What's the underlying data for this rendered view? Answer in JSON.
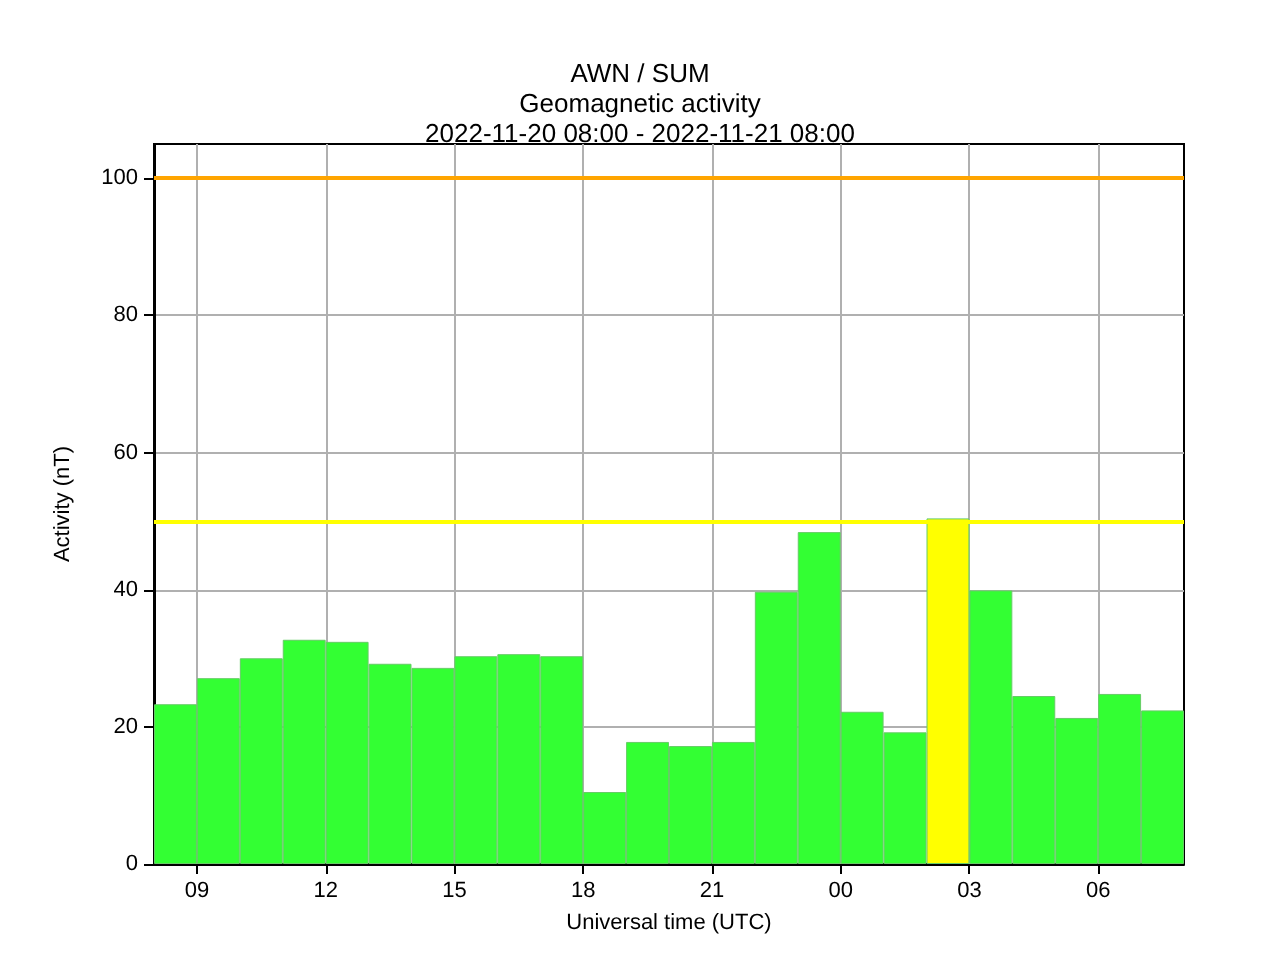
{
  "chart_data": {
    "type": "bar",
    "title": "AWN / SUM",
    "subtitle": "Geomagnetic activity\n2022-11-20 08:00 - 2022-11-21 08:00",
    "xlabel": "Universal time (UTC)",
    "ylabel": "Activity (nT)",
    "x": [
      "2022-11-20T08:30",
      "2022-11-20T09:30",
      "2022-11-20T10:30",
      "2022-11-20T11:30",
      "2022-11-20T12:30",
      "2022-11-20T13:30",
      "2022-11-20T14:30",
      "2022-11-20T15:30",
      "2022-11-20T16:30",
      "2022-11-20T17:30",
      "2022-11-20T18:30",
      "2022-11-20T19:30",
      "2022-11-20T20:30",
      "2022-11-20T21:30",
      "2022-11-20T22:30",
      "2022-11-20T23:30",
      "2022-11-21T00:30",
      "2022-11-21T01:30",
      "2022-11-21T02:30",
      "2022-11-21T03:30",
      "2022-11-21T04:30",
      "2022-11-21T05:30",
      "2022-11-21T06:30",
      "2022-11-21T07:30"
    ],
    "values": [
      23.3,
      27.1,
      30,
      32.7,
      32.4,
      29.2,
      28.6,
      30.3,
      30.6,
      30.3,
      10.5,
      17.8,
      17.2,
      17.8,
      39.7,
      48.4,
      22.2,
      19.2,
      50.4,
      39.9,
      24.5,
      21.3,
      24.8,
      22.4
    ],
    "colors": [
      "#33ff33",
      "#33ff33",
      "#33ff33",
      "#33ff33",
      "#33ff33",
      "#33ff33",
      "#33ff33",
      "#33ff33",
      "#33ff33",
      "#33ff33",
      "#33ff33",
      "#33ff33",
      "#33ff33",
      "#33ff33",
      "#33ff33",
      "#33ff33",
      "#33ff33",
      "#33ff33",
      "#ffff00",
      "#33ff33",
      "#33ff33",
      "#33ff33",
      "#33ff33",
      "#33ff33"
    ],
    "xlim": [
      "2022-11-20T08:00",
      "2022-11-21T08:00"
    ],
    "xticks": [
      {
        "value": "2022-11-20T09:00",
        "label": "09"
      },
      {
        "value": "2022-11-20T12:00",
        "label": "12"
      },
      {
        "value": "2022-11-20T15:00",
        "label": "15"
      },
      {
        "value": "2022-11-20T18:00",
        "label": "18"
      },
      {
        "value": "2022-11-20T21:00",
        "label": "21"
      },
      {
        "value": "2022-11-21T00:00",
        "label": "00"
      },
      {
        "value": "2022-11-21T03:00",
        "label": "03"
      },
      {
        "value": "2022-11-21T06:00",
        "label": "06"
      }
    ],
    "ylim": [
      0,
      105
    ],
    "yticks": [
      0,
      20,
      40,
      60,
      80,
      100
    ],
    "ref_lines": [
      {
        "axis": "y",
        "value": 100,
        "color": "#ffa500"
      },
      {
        "axis": "y",
        "value": 50,
        "color": "#ffff00"
      }
    ],
    "grid": true
  }
}
